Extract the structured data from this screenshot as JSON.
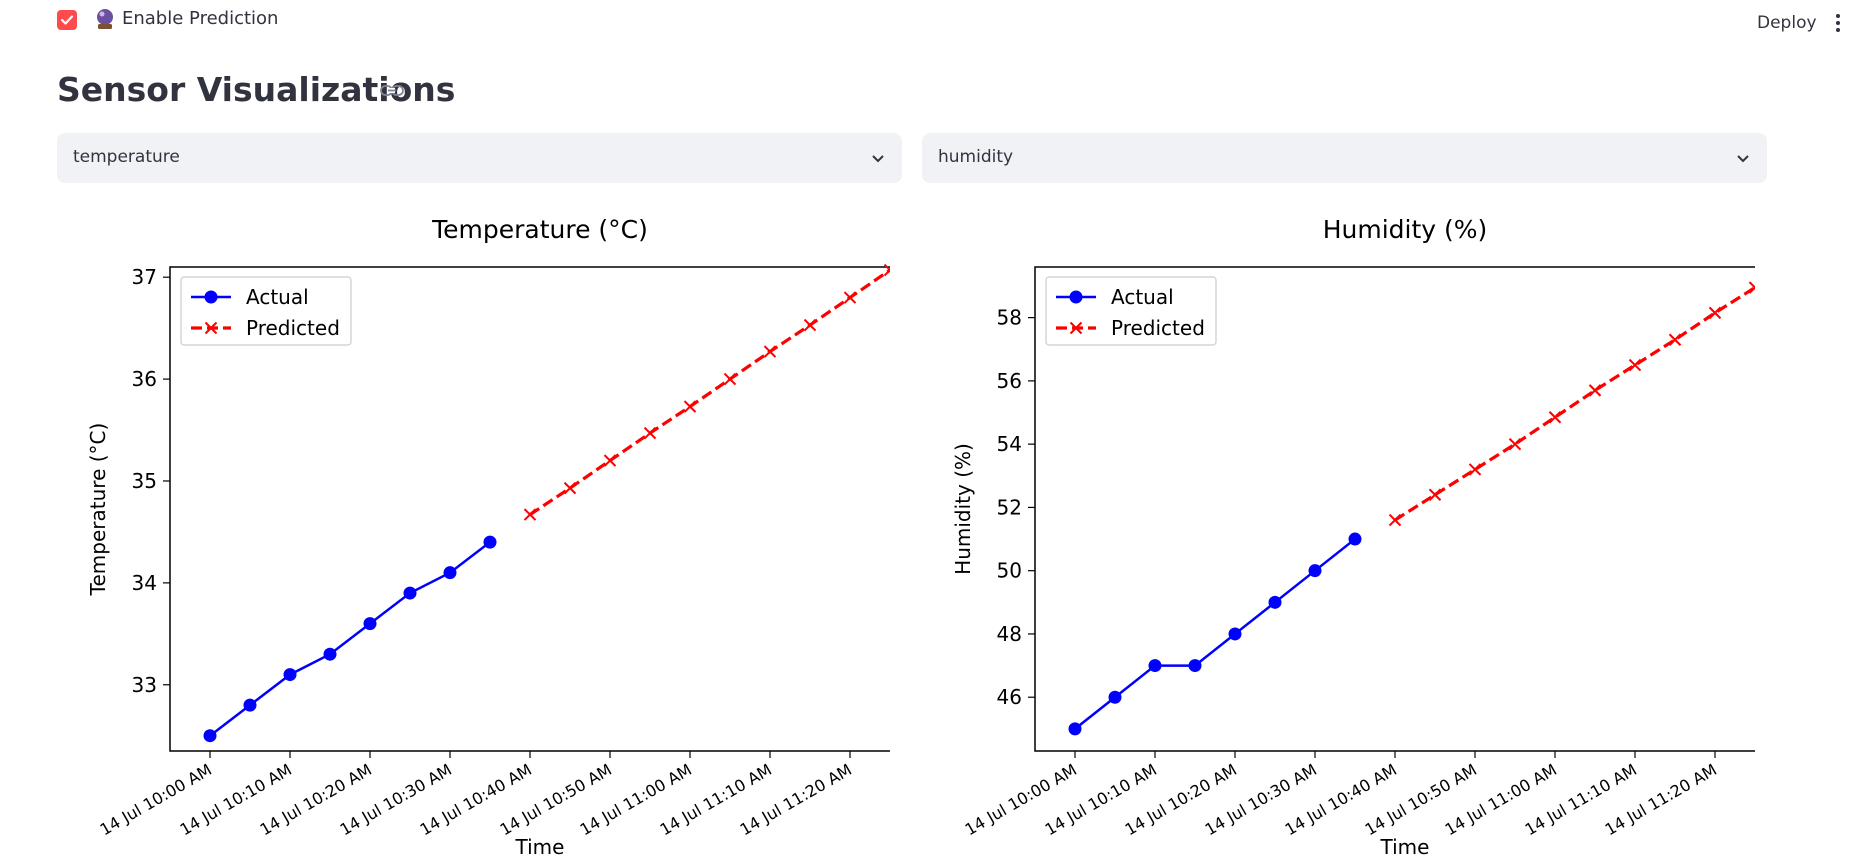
{
  "header": {
    "enable_prediction_label": "Enable Prediction",
    "enable_prediction_checked": true,
    "deploy_label": "Deploy",
    "accent_color": "#ff4b4b"
  },
  "page": {
    "title": "Sensor Visualizations"
  },
  "selectors": {
    "left_value": "temperature",
    "right_value": "humidity"
  },
  "chart_data": [
    {
      "type": "line",
      "title": "Temperature (°C)",
      "xlabel": "Time",
      "ylabel": "Temperature (°C)",
      "x_tick_labels": [
        "14 Jul 10:00 AM",
        "14 Jul 10:10 AM",
        "14 Jul 10:20 AM",
        "14 Jul 10:30 AM",
        "14 Jul 10:40 AM",
        "14 Jul 10:50 AM",
        "14 Jul 11:00 AM",
        "14 Jul 11:10 AM",
        "14 Jul 11:20 AM"
      ],
      "y_ticks": [
        33,
        34,
        35,
        36,
        37
      ],
      "ylim": [
        32.35,
        37.1
      ],
      "legend_position": "top-left",
      "series": [
        {
          "name": "Actual",
          "color": "#0000ff",
          "marker": "circle",
          "style": "solid",
          "x": [
            "10:00",
            "10:05",
            "10:10",
            "10:15",
            "10:20",
            "10:25",
            "10:30",
            "10:35"
          ],
          "values": [
            32.5,
            32.8,
            33.1,
            33.3,
            33.6,
            33.9,
            34.1,
            34.4
          ]
        },
        {
          "name": "Predicted",
          "color": "#ff0000",
          "marker": "x",
          "style": "dashed",
          "x": [
            "10:40",
            "10:45",
            "10:50",
            "10:55",
            "11:00",
            "11:05",
            "11:10",
            "11:15",
            "11:20",
            "11:25"
          ],
          "values": [
            34.67,
            34.93,
            35.2,
            35.47,
            35.73,
            36.0,
            36.27,
            36.53,
            36.8,
            37.07
          ]
        }
      ]
    },
    {
      "type": "line",
      "title": "Humidity (%)",
      "xlabel": "Time",
      "ylabel": "Humidity (%)",
      "x_tick_labels": [
        "14 Jul 10:00 AM",
        "14 Jul 10:10 AM",
        "14 Jul 10:20 AM",
        "14 Jul 10:30 AM",
        "14 Jul 10:40 AM",
        "14 Jul 10:50 AM",
        "14 Jul 11:00 AM",
        "14 Jul 11:10 AM",
        "14 Jul 11:20 AM"
      ],
      "y_ticks": [
        46,
        48,
        50,
        52,
        54,
        56,
        58
      ],
      "ylim": [
        44.3,
        59.6
      ],
      "legend_position": "top-left",
      "series": [
        {
          "name": "Actual",
          "color": "#0000ff",
          "marker": "circle",
          "style": "solid",
          "x": [
            "10:00",
            "10:05",
            "10:10",
            "10:15",
            "10:20",
            "10:25",
            "10:30",
            "10:35"
          ],
          "values": [
            45,
            46,
            47,
            47,
            48,
            49,
            50,
            51
          ]
        },
        {
          "name": "Predicted",
          "color": "#ff0000",
          "marker": "x",
          "style": "dashed",
          "x": [
            "10:40",
            "10:45",
            "10:50",
            "10:55",
            "11:00",
            "11:05",
            "11:10",
            "11:15",
            "11:20",
            "11:25"
          ],
          "values": [
            51.6,
            52.4,
            53.2,
            54.0,
            54.85,
            55.7,
            56.5,
            57.3,
            58.15,
            58.95
          ]
        }
      ]
    }
  ]
}
